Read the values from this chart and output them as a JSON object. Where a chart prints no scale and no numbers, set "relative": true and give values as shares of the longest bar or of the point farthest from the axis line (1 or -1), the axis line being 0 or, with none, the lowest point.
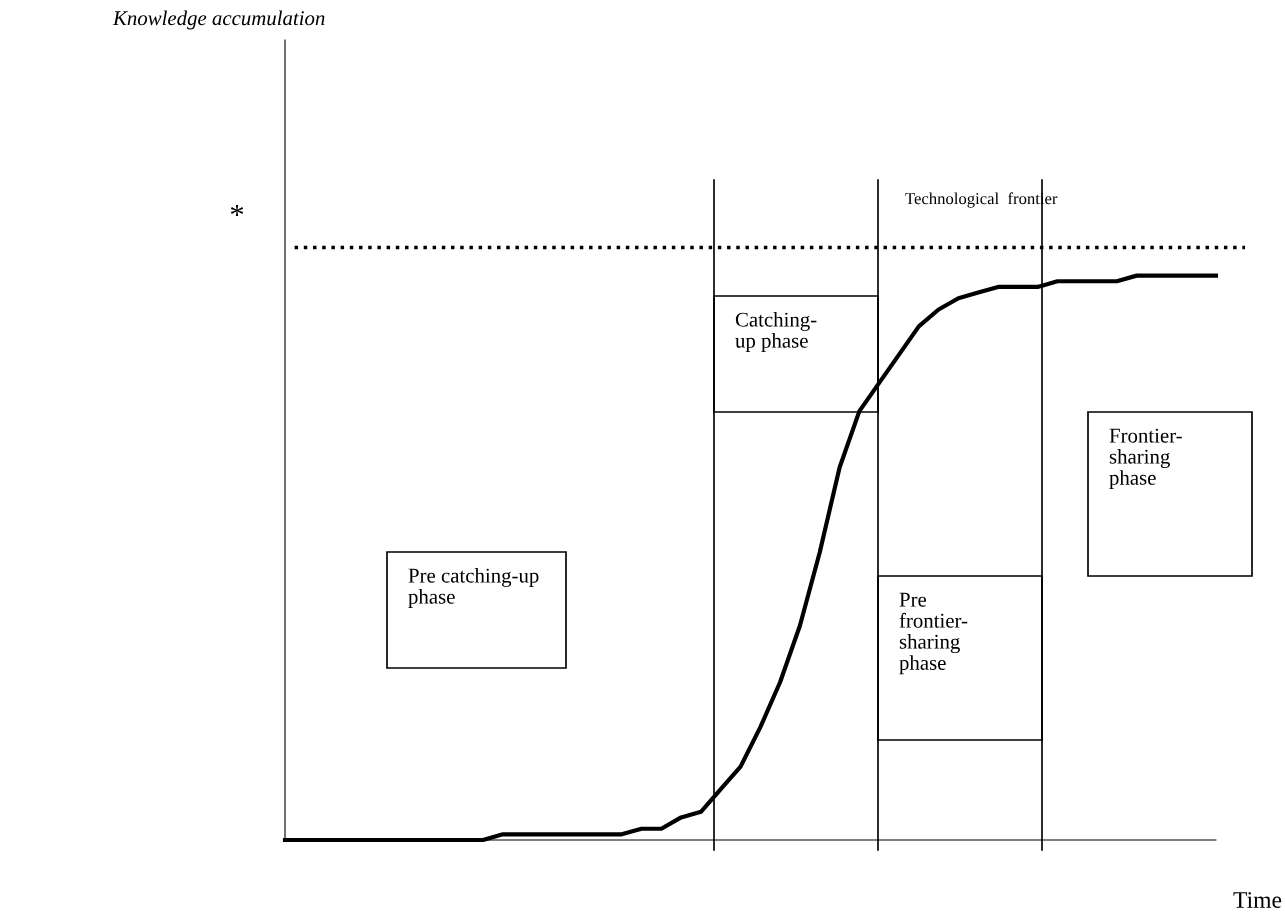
{
  "chart_data": {
    "type": "line",
    "relative": true,
    "xlabel": "Time",
    "categories": [
      null,
      null,
      null,
      null,
      null,
      null,
      null,
      null,
      null,
      null,
      null,
      null,
      null,
      null,
      null,
      null,
      null,
      null,
      null,
      null,
      null,
      null,
      null,
      null,
      null,
      null,
      null,
      null,
      null,
      null,
      null,
      null,
      null,
      null,
      null,
      null,
      null,
      null,
      null,
      null,
      null,
      null,
      null,
      null,
      null,
      null,
      null,
      null
    ],
    "series": [
      {
        "color": "#000000",
        "values": [
          0,
          0,
          0,
          0,
          0,
          0,
          0,
          0,
          0,
          0,
          0,
          0.01,
          0.01,
          0.01,
          0.01,
          0.01,
          0.01,
          0.01,
          0.02,
          0.02,
          0.04,
          0.05,
          0.09,
          0.13,
          0.2,
          0.28,
          0.38,
          0.51,
          0.66,
          0.76,
          0.81,
          0.86,
          0.91,
          0.94,
          0.96,
          0.97,
          0.98,
          0.98,
          0.98,
          0.99,
          0.99,
          0.99,
          0.99,
          1,
          1,
          1,
          1,
          1
        ]
      }
    ],
    "ref_lines": [
      {
        "axis": "y",
        "value": 1.05,
        "label": "*",
        "line_style": "dotted",
        "color": "#000000"
      }
    ],
    "annotations": [
      "Knowledge accumulation",
      "Technological  frontier",
      "Catching-\nup phase",
      "Pre catching-up\nphase",
      "Pre\nfrontier-\nsharing\nphase",
      "Frontier-\nsharing\nphase"
    ],
    "marker": "none",
    "line_style": "solid"
  }
}
